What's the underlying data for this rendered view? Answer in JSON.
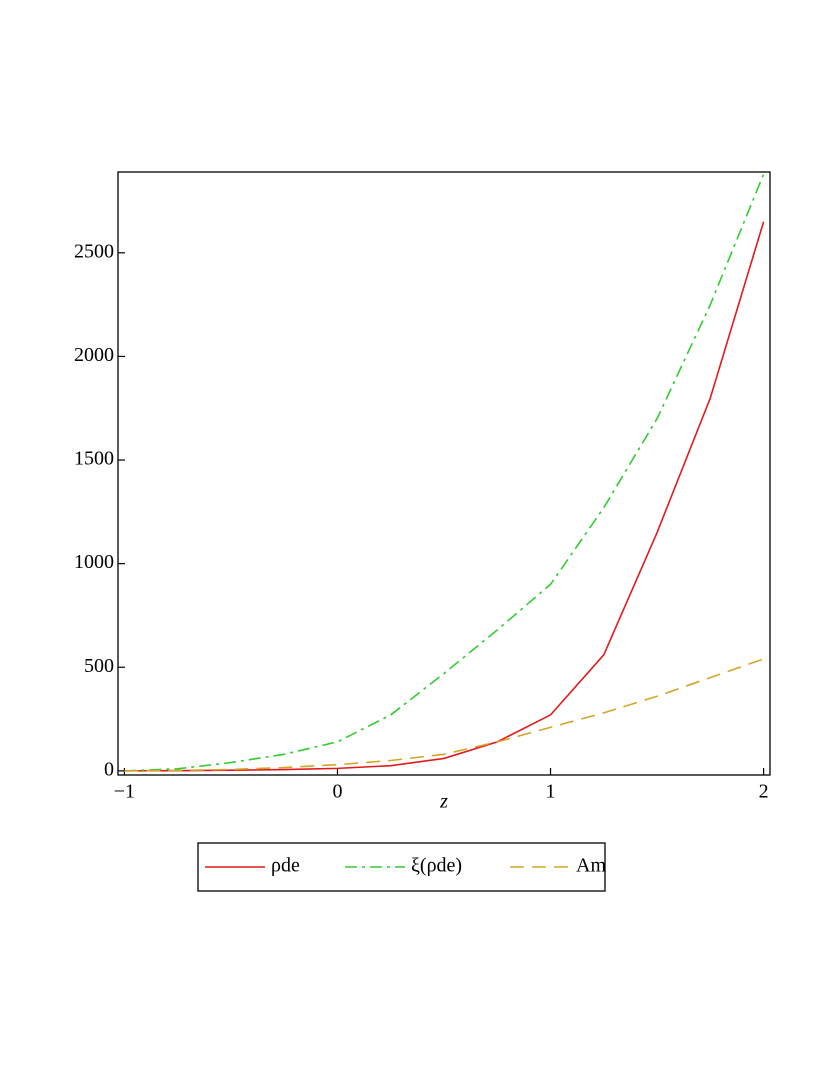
{
  "chart_data": {
    "type": "line",
    "x_label": "z",
    "x": [
      -1,
      -0.75,
      -0.5,
      -0.25,
      0,
      0.25,
      0.5,
      0.75,
      1,
      1.25,
      1.5,
      1.75,
      2
    ],
    "series": [
      {
        "name": "ρde",
        "color": "#e31a1c",
        "dash": "solid",
        "values": [
          0,
          1,
          3,
          6,
          12,
          25,
          60,
          140,
          270,
          560,
          1150,
          1800,
          2650
        ]
      },
      {
        "name": "ξ(ρde)",
        "color": "#33cc33",
        "dash": "dashdot",
        "values": [
          0,
          10,
          40,
          80,
          140,
          270,
          470,
          680,
          900,
          1270,
          1700,
          2250,
          2880
        ]
      },
      {
        "name": "Am",
        "color": "#d4a52a",
        "dash": "dash",
        "values": [
          0,
          2,
          7,
          16,
          30,
          50,
          80,
          140,
          210,
          280,
          360,
          450,
          540
        ]
      }
    ],
    "xlim": [
      -1.03,
      2.03
    ],
    "xticks": [
      {
        "value": -1,
        "label": "−1"
      },
      0,
      1,
      2
    ],
    "ylim": [
      -20,
      2890
    ],
    "yticks": [
      0,
      500,
      1000,
      1500,
      2000,
      2500
    ],
    "legend": "bottom"
  }
}
